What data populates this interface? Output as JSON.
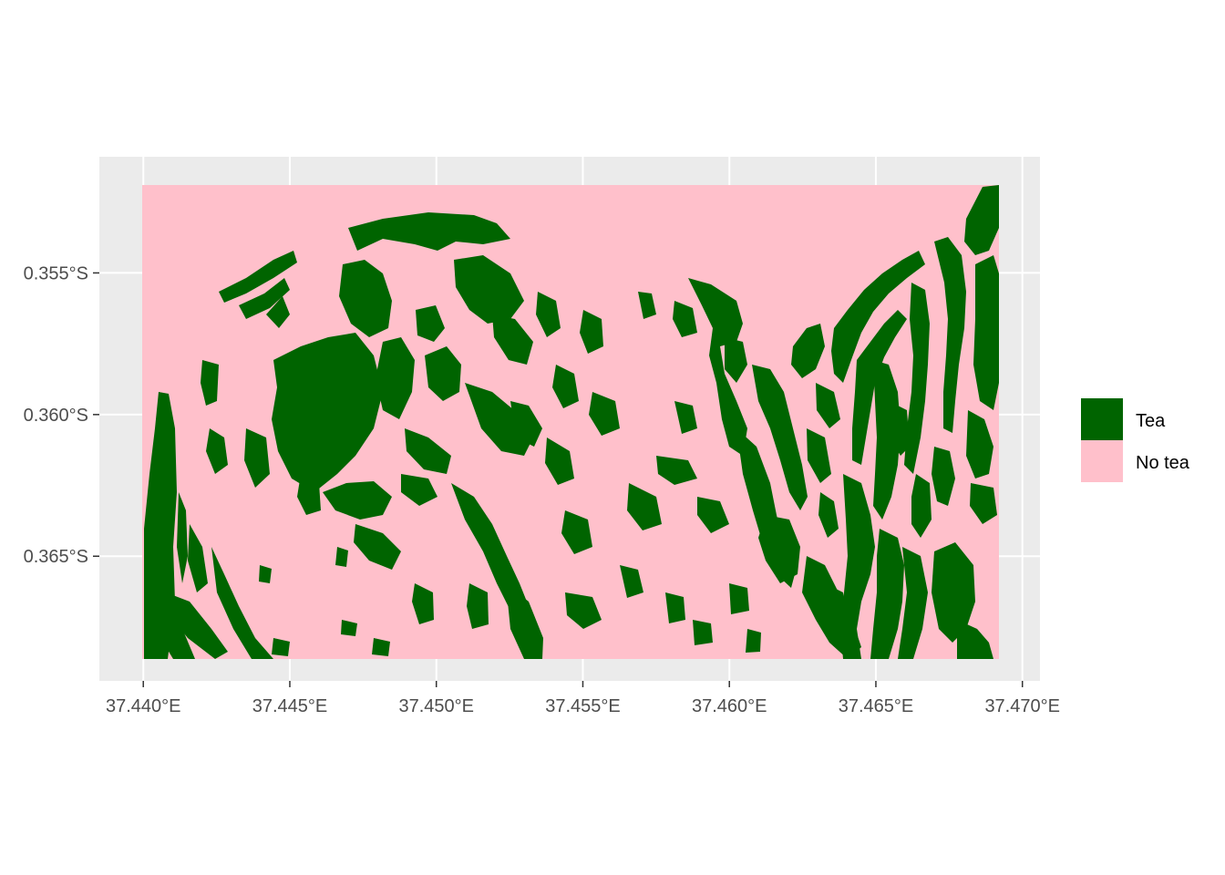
{
  "map": {
    "colors": {
      "panel_background": "#EBEBEB",
      "grid_line": "#FFFFFF",
      "axis_text": "#4D4D4D",
      "tea": "#006400",
      "no_tea": "#FFC0CB"
    },
    "x_axis": {
      "ticks": [
        37.44,
        37.445,
        37.45,
        37.455,
        37.46,
        37.465,
        37.47
      ],
      "labels": [
        "37.440°E",
        "37.445°E",
        "37.450°E",
        "37.455°E",
        "37.460°E",
        "37.465°E",
        "37.470°E"
      ],
      "range": [
        37.4385,
        37.4706
      ]
    },
    "y_axis": {
      "ticks": [
        -0.355,
        -0.36,
        -0.365
      ],
      "labels": [
        "0.355°S",
        "0.360°S",
        "0.365°S"
      ],
      "range": [
        -0.3694,
        -0.3509
      ]
    },
    "raster_extent": {
      "lon": [
        37.4395,
        37.4696
      ],
      "lat": [
        -0.3684,
        -0.3518
      ]
    },
    "legend": [
      {
        "label": "Tea",
        "color": "#006400"
      },
      {
        "label": "No tea",
        "color": "#FFC0CB"
      }
    ]
  }
}
